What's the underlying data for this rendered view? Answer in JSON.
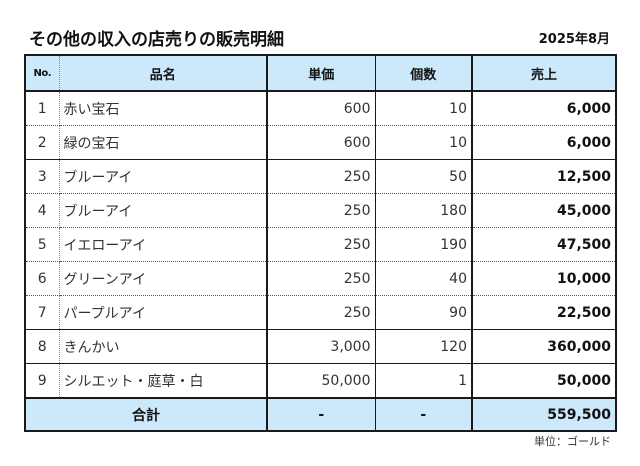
{
  "header": {
    "title": "その他の収入の店売りの販売明細",
    "date": "2025年8月"
  },
  "table": {
    "columns": {
      "no": "No.",
      "name": "品名",
      "unit_price": "単価",
      "quantity": "個数",
      "sales": "売上"
    },
    "rows": [
      {
        "no": "1",
        "name": "赤い宝石",
        "unit_price": "600",
        "quantity": "10",
        "sales": "6,000"
      },
      {
        "no": "2",
        "name": "緑の宝石",
        "unit_price": "600",
        "quantity": "10",
        "sales": "6,000"
      },
      {
        "no": "3",
        "name": "ブルーアイ",
        "unit_price": "250",
        "quantity": "50",
        "sales": "12,500"
      },
      {
        "no": "4",
        "name": "ブルーアイ",
        "unit_price": "250",
        "quantity": "180",
        "sales": "45,000"
      },
      {
        "no": "5",
        "name": "イエローアイ",
        "unit_price": "250",
        "quantity": "190",
        "sales": "47,500"
      },
      {
        "no": "6",
        "name": "グリーンアイ",
        "unit_price": "250",
        "quantity": "40",
        "sales": "10,000"
      },
      {
        "no": "7",
        "name": "パープルアイ",
        "unit_price": "250",
        "quantity": "90",
        "sales": "22,500"
      },
      {
        "no": "8",
        "name": "きんかい",
        "unit_price": "3,000",
        "quantity": "120",
        "sales": "360,000"
      },
      {
        "no": "9",
        "name": "シルエット・庭草・白",
        "unit_price": "50,000",
        "quantity": "1",
        "sales": "50,000"
      }
    ],
    "total": {
      "label": "合計",
      "unit_price": "-",
      "quantity": "-",
      "sales": "559,500"
    }
  },
  "footer": {
    "unit_note": "単位：ゴールド"
  },
  "colors": {
    "header_bg": "#cce9fb",
    "border": "#1a1a1a"
  }
}
